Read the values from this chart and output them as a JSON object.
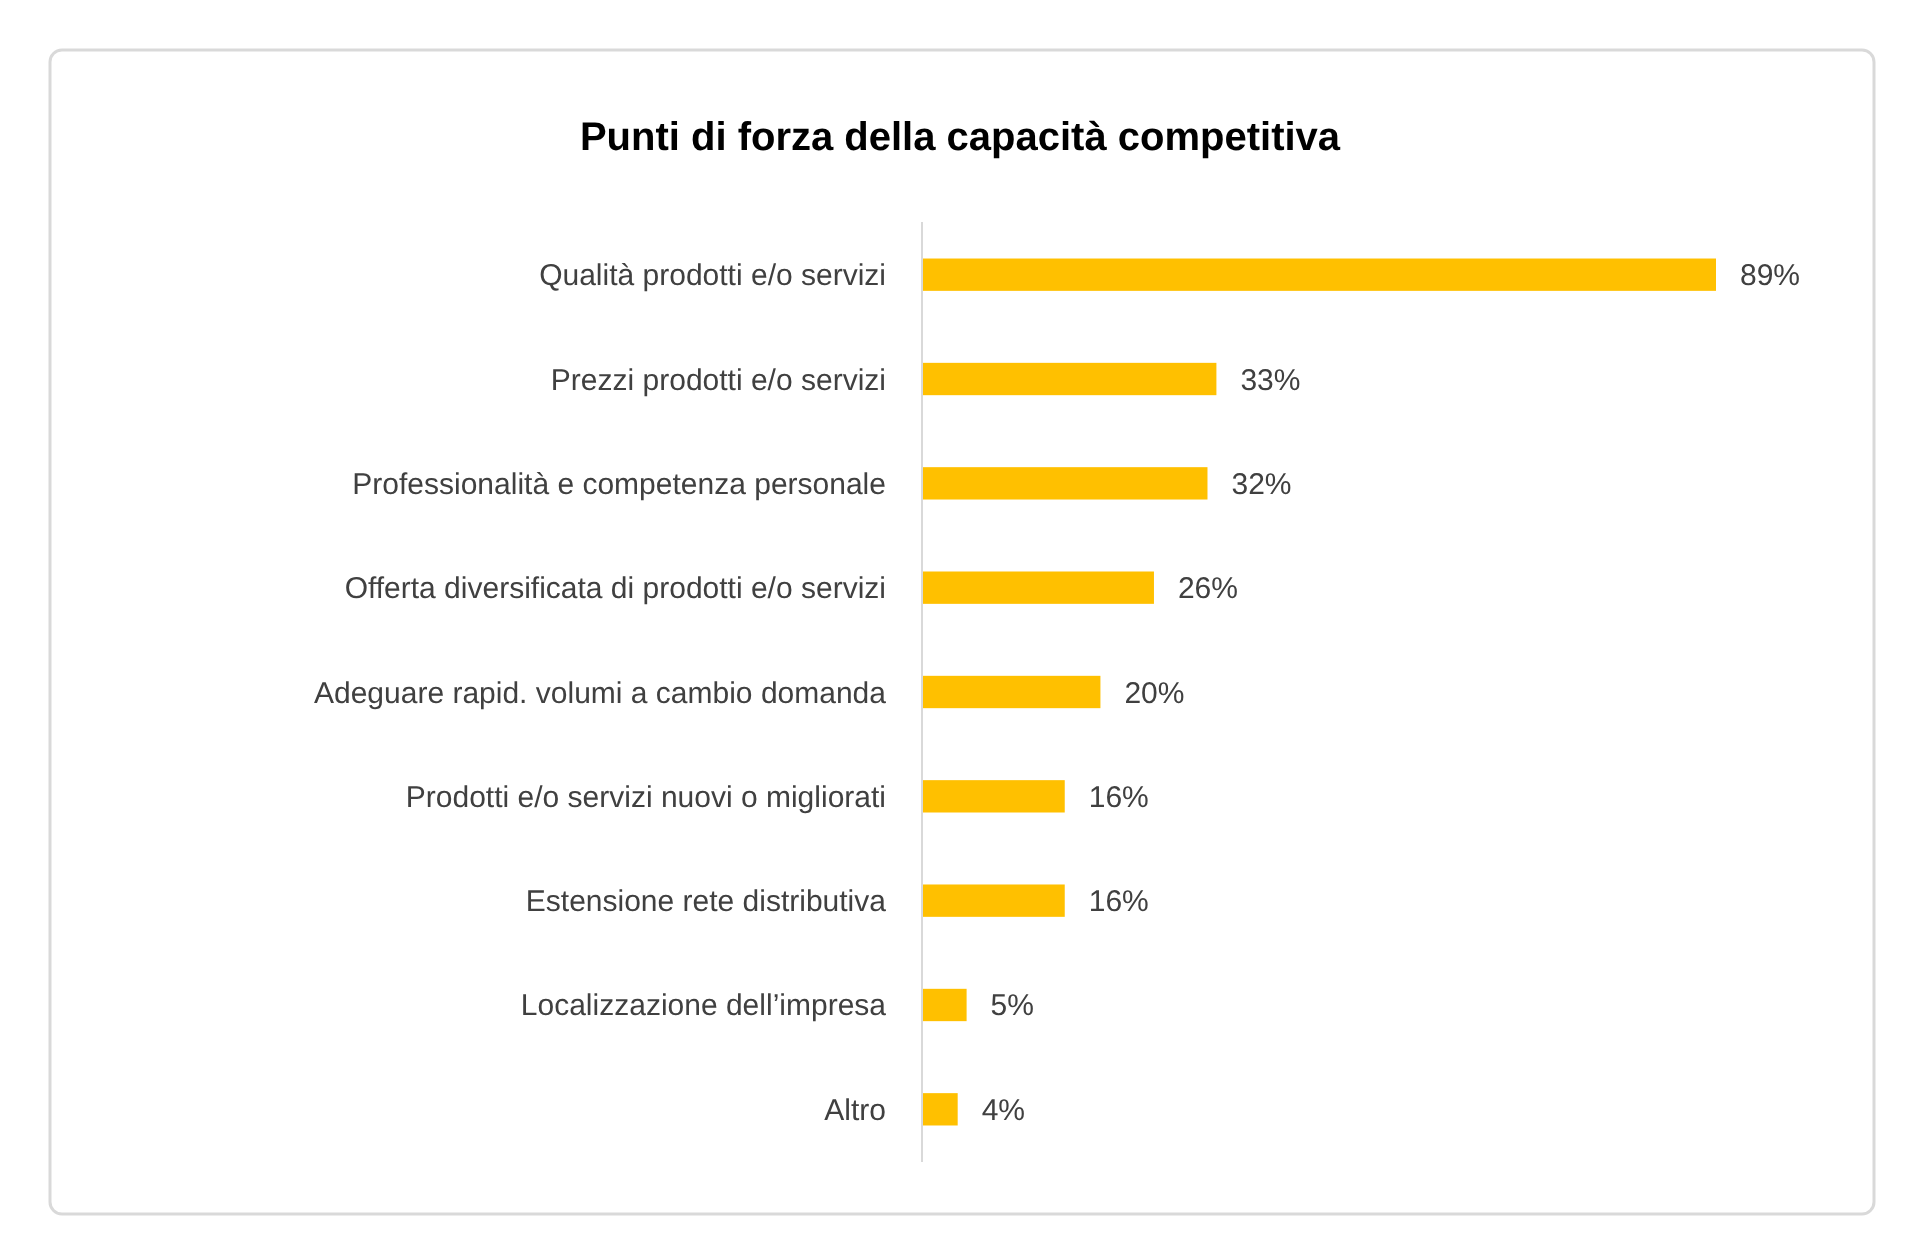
{
  "chart_data": {
    "type": "bar",
    "orientation": "horizontal",
    "title": "Punti di forza della capacità competitiva",
    "categories": [
      "Qualità prodotti e/o servizi",
      "Prezzi prodotti e/o servizi",
      "Professionalità e competenza personale",
      "Offerta diversificata di prodotti e/o servizi",
      "Adeguare rapid. volumi a cambio domanda",
      "Prodotti e/o servizi nuovi o migliorati",
      "Estensione rete distributiva",
      "Localizzazione dell’impresa",
      "Altro"
    ],
    "values": [
      89,
      33,
      32,
      26,
      20,
      16,
      16,
      5,
      4
    ],
    "value_labels": [
      "89%",
      "33%",
      "32%",
      "26%",
      "20%",
      "16%",
      "16%",
      "5%",
      "4%"
    ],
    "color": "#ffc000"
  }
}
